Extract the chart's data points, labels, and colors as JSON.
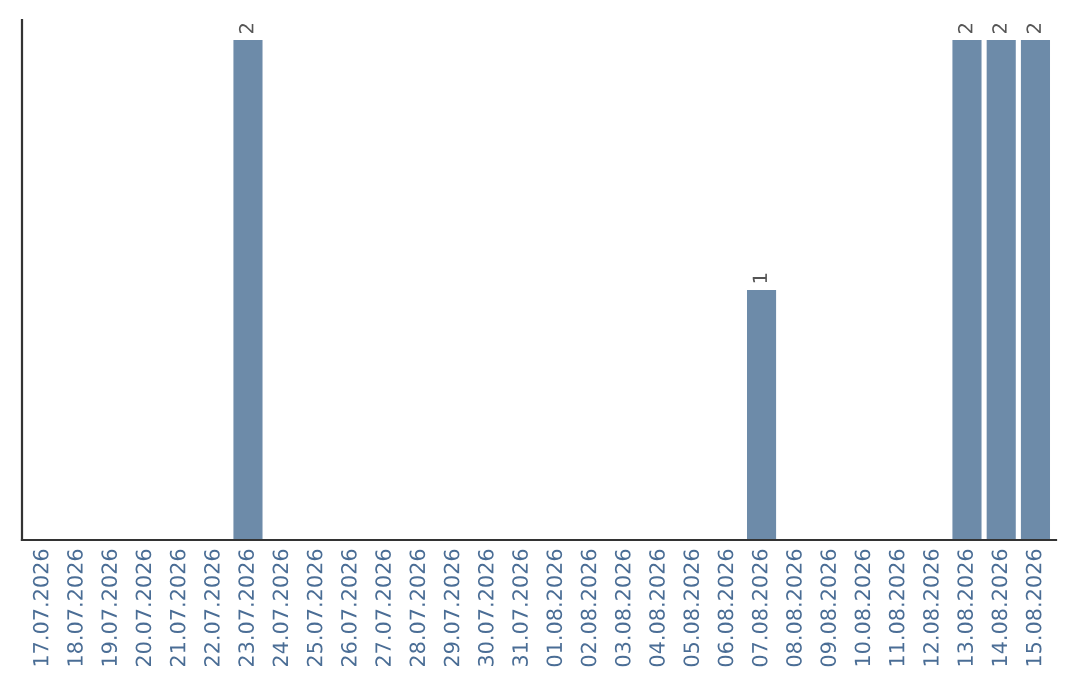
{
  "chart_data": {
    "type": "bar",
    "categories": [
      "17.07.2026",
      "18.07.2026",
      "19.07.2026",
      "20.07.2026",
      "21.07.2026",
      "22.07.2026",
      "23.07.2026",
      "24.07.2026",
      "25.07.2026",
      "26.07.2026",
      "27.07.2026",
      "28.07.2026",
      "29.07.2026",
      "30.07.2026",
      "31.07.2026",
      "01.08.2026",
      "02.08.2026",
      "03.08.2026",
      "04.08.2026",
      "05.08.2026",
      "06.08.2026",
      "07.08.2026",
      "08.08.2026",
      "09.08.2026",
      "10.08.2026",
      "11.08.2026",
      "12.08.2026",
      "13.08.2026",
      "14.08.2026",
      "15.08.2026"
    ],
    "values": [
      0,
      0,
      0,
      0,
      0,
      0,
      2,
      0,
      0,
      0,
      0,
      0,
      0,
      0,
      0,
      0,
      0,
      0,
      0,
      0,
      0,
      1,
      0,
      0,
      0,
      0,
      0,
      2,
      2,
      2
    ],
    "value_labels": [
      null,
      null,
      null,
      null,
      null,
      null,
      "2",
      null,
      null,
      null,
      null,
      null,
      null,
      null,
      null,
      null,
      null,
      null,
      null,
      null,
      null,
      "1",
      null,
      null,
      null,
      null,
      null,
      "2",
      "2",
      "2"
    ],
    "color": "#6d8ba9",
    "tick_labels": "x",
    "grid": false,
    "legend": false
  }
}
